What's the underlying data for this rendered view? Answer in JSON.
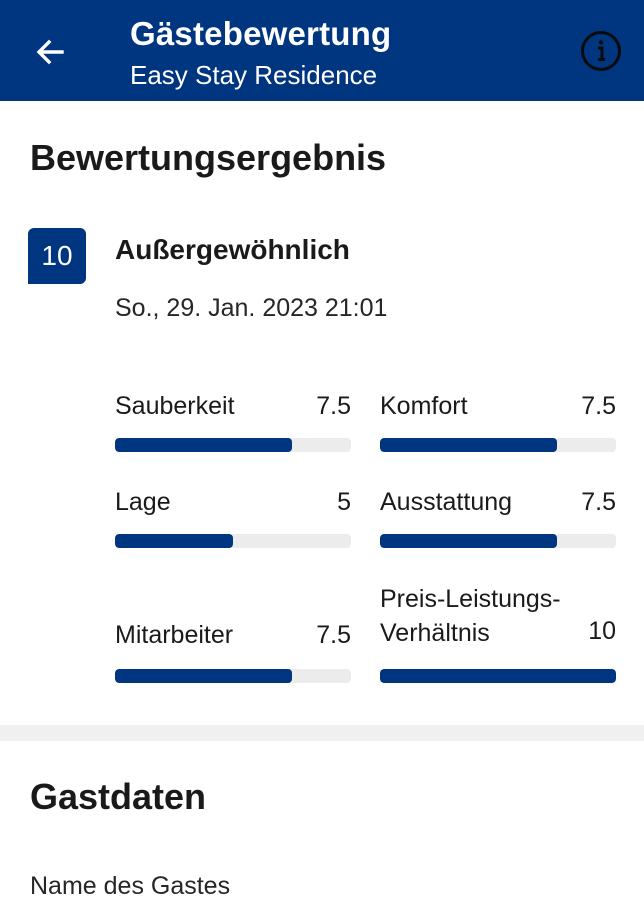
{
  "header": {
    "title": "Gästebewertung",
    "subtitle": "Easy Stay Residence",
    "colors": {
      "bar": "#003580",
      "text": "#ffffff"
    },
    "icons": {
      "back": "arrow-left-icon",
      "info": "info-circle-icon"
    }
  },
  "rating_section": {
    "title": "Bewertungsergebnis",
    "score": "10",
    "score_label": "Außergewöhnlich",
    "date": "So., 29. Jan. 2023 21:01",
    "scale_max": 10,
    "categories": [
      {
        "label": "Sauberkeit",
        "value": "7.5",
        "score": 7.5
      },
      {
        "label": "Komfort",
        "value": "7.5",
        "score": 7.5
      },
      {
        "label": "Lage",
        "value": "5",
        "score": 5
      },
      {
        "label": "Ausstattung",
        "value": "7.5",
        "score": 7.5
      },
      {
        "label": "Mitarbeiter",
        "value": "7.5",
        "score": 7.5
      },
      {
        "label_line1": "Preis-Leistungs-",
        "label_line2": "Verhältnis",
        "value": "10",
        "score": 10
      }
    ]
  },
  "guest_section": {
    "title": "Gastdaten",
    "name_label": "Name des Gastes"
  }
}
